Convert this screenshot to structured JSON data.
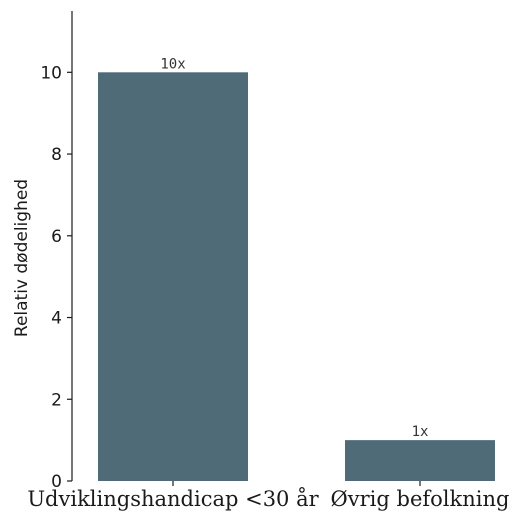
{
  "chart_data": {
    "type": "bar",
    "title": "",
    "xlabel": "",
    "ylabel": "Relativ dødelighed",
    "categories": [
      "Udviklingshandicap <30 år",
      "Øvrig befolkning"
    ],
    "values": [
      10,
      1
    ],
    "data_labels": [
      "10x",
      "1x"
    ],
    "ylim": [
      0,
      11.5
    ],
    "yticks": [
      0,
      2,
      4,
      6,
      8,
      10
    ],
    "grid": false,
    "colors": {
      "bar": "#4f6b78",
      "axis": "#1a1a1a"
    }
  }
}
